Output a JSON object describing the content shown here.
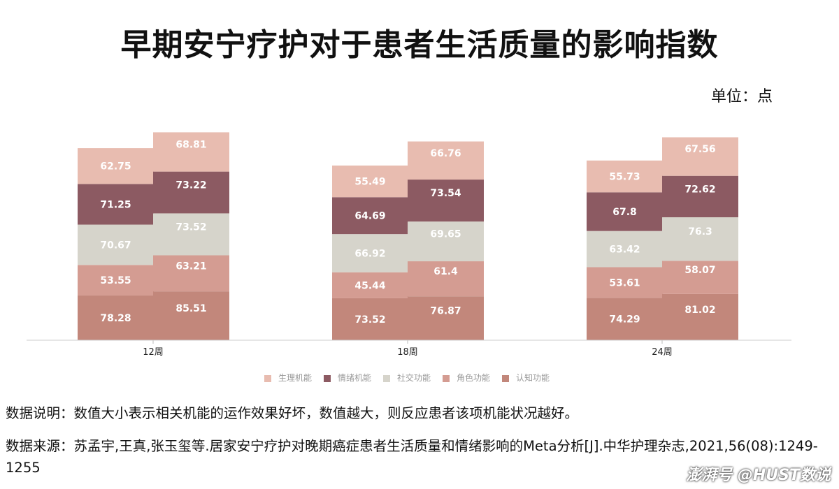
{
  "title": "早期安宁疗护对于患者生活质量的影响指数",
  "unit": "单位：点",
  "chart_data": {
    "type": "bar",
    "stacked": true,
    "title": "早期安宁疗护对于患者生活质量的影响指数",
    "categories": [
      "12周",
      "18周",
      "24周"
    ],
    "bars_per_category": 2,
    "series": [
      {
        "name": "认知功能",
        "color": "#c2877b",
        "values": [
          [
            78.28,
            85.51
          ],
          [
            73.52,
            76.87
          ],
          [
            74.29,
            81.02
          ]
        ]
      },
      {
        "name": "角色功能",
        "color": "#d49c92",
        "values": [
          [
            53.55,
            63.21
          ],
          [
            45.44,
            61.4
          ],
          [
            53.61,
            58.07
          ]
        ]
      },
      {
        "name": "社交功能",
        "color": "#d6d4cb",
        "values": [
          [
            70.67,
            73.52
          ],
          [
            66.92,
            69.65
          ],
          [
            63.42,
            76.3
          ]
        ]
      },
      {
        "name": "情绪机能",
        "color": "#8c5a62",
        "values": [
          [
            71.25,
            73.22
          ],
          [
            64.69,
            73.54
          ],
          [
            67.8,
            72.62
          ]
        ]
      },
      {
        "name": "生理机能",
        "color": "#e8bcb0",
        "values": [
          [
            62.75,
            68.81
          ],
          [
            55.49,
            66.76
          ],
          [
            55.73,
            67.56
          ]
        ]
      }
    ],
    "legend_order": [
      "生理机能",
      "情绪机能",
      "社交功能",
      "角色功能",
      "认知功能"
    ],
    "legend_position": "bottom",
    "grid": false
  },
  "notes": {
    "description": "数据说明：数值大小表示相关机能的运作效果好坏，数值越大，则反应患者该项机能状况越好。",
    "source": "数据来源：苏孟宇,王真,张玉玺等.居家安宁疗护对晚期癌症患者生活质量和情绪影响的Meta分析[J].中华护理杂志,2021,56(08):1249-1255"
  },
  "watermark": "澎湃号 @HUST数说"
}
